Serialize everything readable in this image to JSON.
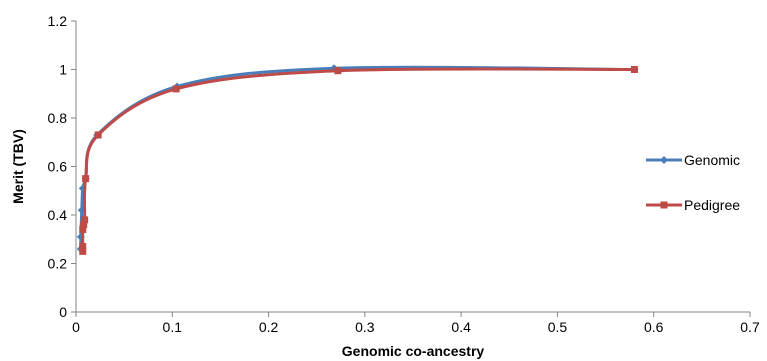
{
  "chart_data": {
    "type": "line",
    "xlabel": "Genomic co-ancestry",
    "ylabel": "Merit (TBV)",
    "xlim": [
      0,
      0.7
    ],
    "ylim": [
      0,
      1.2
    ],
    "x_ticks": [
      "0",
      "0.1",
      "0.2",
      "0.3",
      "0.4",
      "0.5",
      "0.6",
      "0.7"
    ],
    "y_ticks": [
      "0",
      "0.2",
      "0.4",
      "0.6",
      "0.8",
      "1",
      "1.2"
    ],
    "grid": false,
    "legend_position": "right",
    "series": [
      {
        "name": "Genomic",
        "color": "#4A7EBB",
        "marker": "diamond",
        "points": [
          [
            0.005,
            0.26
          ],
          [
            0.005,
            0.31
          ],
          [
            0.006,
            0.42
          ],
          [
            0.007,
            0.51
          ],
          [
            0.01,
            0.55
          ],
          [
            0.022,
            0.73
          ],
          [
            0.105,
            0.93
          ],
          [
            0.268,
            1.005
          ],
          [
            0.58,
            1.0
          ]
        ]
      },
      {
        "name": "Pedigree",
        "color": "#BE4B48",
        "marker": "square",
        "points": [
          [
            0.007,
            0.25
          ],
          [
            0.007,
            0.27
          ],
          [
            0.007,
            0.34
          ],
          [
            0.008,
            0.36
          ],
          [
            0.009,
            0.38
          ],
          [
            0.01,
            0.55
          ],
          [
            0.023,
            0.73
          ],
          [
            0.104,
            0.92
          ],
          [
            0.272,
            0.995
          ],
          [
            0.58,
            1.0
          ]
        ]
      }
    ]
  }
}
